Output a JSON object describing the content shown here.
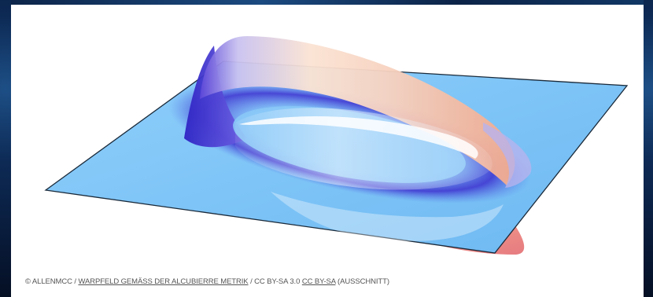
{
  "figure": {
    "alt_subject": "warp-field-surface"
  },
  "caption": {
    "copyright_prefix": "© ALLENMCC / ",
    "title_link": "WARPFELD GEMÄSS DER ALCUBIERRE METRIK",
    "license_text": " / CC BY-SA 3.0 ",
    "license_link": "CC BY-SA",
    "suffix": " (AUSSCHNITT)"
  },
  "colors": {
    "plane": "#7cc4f7",
    "plane_edge": "#1a2a3a",
    "trough": "#3b2fd0",
    "crest": "#f6b59a",
    "background": "#0a1a33"
  }
}
